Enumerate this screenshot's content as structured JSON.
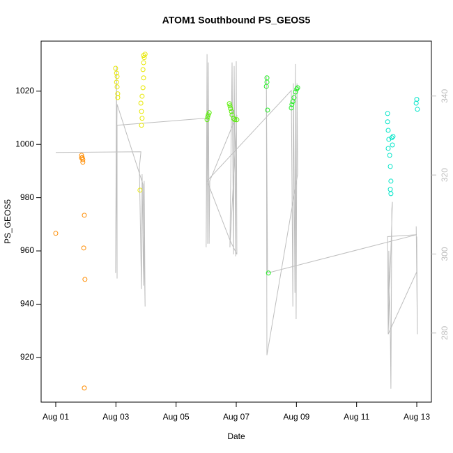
{
  "chart_data": {
    "type": "scatter",
    "title": "ATOM1 Southbound PS_GEOS5",
    "xlabel": "Date",
    "ylabel": "PS_GEOS5",
    "xlim": [
      -0.486,
      12.486
    ],
    "ylim": [
      903.2,
      1038.8
    ],
    "y2lim": [
      262.5,
      353.9
    ],
    "xticks": [
      {
        "value": 0,
        "label": "Aug 01"
      },
      {
        "value": 2,
        "label": "Aug 03"
      },
      {
        "value": 4,
        "label": "Aug 05"
      },
      {
        "value": 6,
        "label": "Aug 07"
      },
      {
        "value": 8,
        "label": "Aug 09"
      },
      {
        "value": 10,
        "label": "Aug 11"
      },
      {
        "value": 12,
        "label": "Aug 13"
      }
    ],
    "yticks": [
      920,
      940,
      960,
      980,
      1000,
      1020
    ],
    "y2ticks": [
      280,
      300,
      320,
      340
    ],
    "series": [
      {
        "type": "line",
        "axis": "y2",
        "color": "#bebebe",
        "x": [
          0,
          2.83,
          2.78,
          2.85,
          2.87,
          2.92,
          2.94,
          2.97,
          2.9,
          2.04,
          1.99,
          2.02,
          2.04,
          2.04,
          5.03,
          5,
          5.03,
          5.05,
          5.07,
          5.1,
          5.12,
          6.02,
          5.79,
          5.86,
          5.91,
          5.93,
          5.98,
          6,
          6.02,
          5.79,
          5.03,
          7.83,
          7.88,
          7.9,
          7.95,
          7.97,
          7.99,
          8.02,
          8.04,
          7.02,
          7,
          7.04,
          12,
          11.03,
          11.05,
          11.07,
          11.12,
          11.14,
          11.17,
          11.19,
          11.05,
          12,
          11.98,
          12.02,
          12
        ],
        "values": [
          325.7,
          325.9,
          322,
          291.1,
          320.2,
          292,
          318.5,
          286.7,
          317.6,
          337.9,
          295.2,
          347.6,
          293.8,
          332.6,
          334.4,
          301.7,
          350.6,
          302.6,
          348.5,
          302.6,
          318.5,
          335.2,
          301.7,
          348.5,
          299.9,
          347.6,
          299.4,
          348.8,
          299.9,
          303.5,
          318.5,
          341.4,
          286.7,
          343.2,
          290.2,
          348.1,
          283.5,
          343.2,
          320.2,
          274.4,
          344.9,
          295.2,
          304.9,
          304.4,
          279.7,
          300.8,
          281.4,
          265.9,
          311.4,
          313.2,
          279.7,
          295.5,
          307,
          279.7,
          304.4
        ]
      },
      {
        "type": "scatter",
        "axis": "y",
        "x": [
          0,
          0.86,
          0.88,
          0.9,
          0.86,
          0.9,
          0.95,
          0.93,
          0.97,
          0.95,
          1.99,
          2.02,
          2.04,
          2.02,
          2.04,
          2.06,
          2.06,
          2.8,
          2.85,
          2.87,
          2.85,
          2.83,
          2.87,
          2.9,
          2.92,
          2.9,
          2.92,
          2.94,
          2.97,
          2.92,
          5.03,
          5.05,
          5.07,
          5.1,
          5.77,
          5.79,
          5.81,
          5.84,
          5.86,
          5.91,
          5.95,
          6.02,
          7.02,
          7.02,
          7,
          7.04,
          7.07,
          7.83,
          7.85,
          7.88,
          7.92,
          7.97,
          8.01,
          8.04,
          11.03,
          11.03,
          11.05,
          11.07,
          11.05,
          11.1,
          11.12,
          11.14,
          11.12,
          11.14,
          11.19,
          11.21,
          11.17,
          12,
          11.98,
          12.02
        ],
        "values": [
          966.6,
          995.9,
          995.1,
          994.3,
          994.9,
          993.3,
          973.4,
          961.1,
          949.3,
          908.5,
          1028.6,
          1026.8,
          1025.5,
          1023.4,
          1021.6,
          1019,
          1017.6,
          982.8,
          1007.2,
          1009.8,
          1012.4,
          1015.5,
          1018.1,
          1021.3,
          1025,
          1028.1,
          1030.7,
          1032.6,
          1033.9,
          1033.4,
          1009.3,
          1010.3,
          1011.1,
          1011.9,
          1015.3,
          1014.5,
          1013.5,
          1012.4,
          1011.1,
          1009.8,
          1009.3,
          1009.3,
          1025,
          1023.4,
          1021.8,
          1012.9,
          951.7,
          1013.7,
          1015,
          1016.1,
          1017.6,
          1019.7,
          1020.8,
          1021.3,
          1011.6,
          1008.5,
          1005.3,
          1001.9,
          998.5,
          995.9,
          991.7,
          986.2,
          983.1,
          981.5,
          999.8,
          1003,
          1002.5,
          1016.9,
          1015.5,
          1013.2
        ],
        "colors": [
          "#ff8c00",
          "#ff8c00",
          "#ff8c00",
          "#ff8c00",
          "#ff8c00",
          "#ff8c00",
          "#ff8c00",
          "#ff8c00",
          "#ff8c00",
          "#ff8c00",
          "#e8e800",
          "#e8e800",
          "#e8e800",
          "#e8e800",
          "#e8e800",
          "#e8e800",
          "#e8e800",
          "#e8e800",
          "#e8e800",
          "#e8e800",
          "#e8e800",
          "#e8e800",
          "#e8e800",
          "#e8e800",
          "#e8e800",
          "#e8e800",
          "#e8e800",
          "#e8e800",
          "#e8e800",
          "#e8e800",
          "#55ee00",
          "#55ee00",
          "#55ee00",
          "#55ee00",
          "#55ee00",
          "#55ee00",
          "#55ee00",
          "#55ee00",
          "#55ee00",
          "#55ee00",
          "#55ee00",
          "#55ee00",
          "#22ee22",
          "#22ee22",
          "#22ee22",
          "#22ee22",
          "#22ee22",
          "#22ee22",
          "#22ee22",
          "#22ee22",
          "#22ee22",
          "#22ee22",
          "#22ee22",
          "#22ee22",
          "#00e5c8",
          "#00e5c8",
          "#00e5c8",
          "#00e5c8",
          "#00e5c8",
          "#00e5c8",
          "#00e5c8",
          "#00e5c8",
          "#00e5c8",
          "#00e5c8",
          "#00e5c8",
          "#00e5c8",
          "#00e5c8",
          "#00e5c8",
          "#00e5c8",
          "#00e5c8"
        ]
      }
    ]
  }
}
